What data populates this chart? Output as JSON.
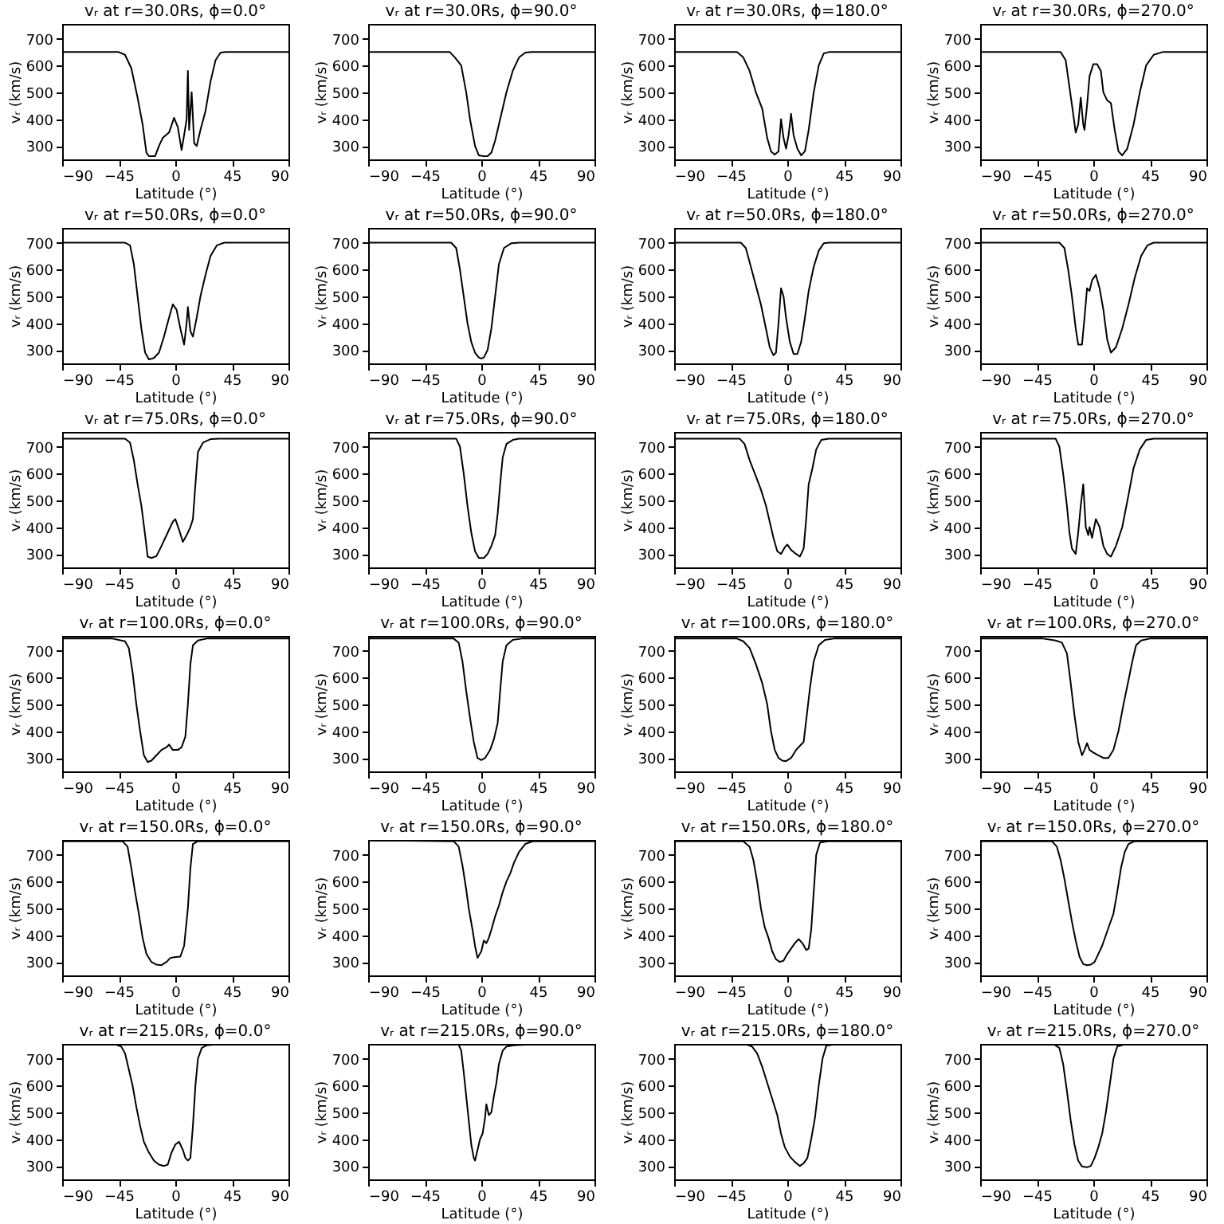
{
  "chart_data": [
    {
      "type": "line",
      "title": "vᵣ at r=30.0Rs, ϕ=0.0°",
      "xlabel": "Latitude (°)",
      "ylabel": "vᵣ (km/s)",
      "xlim": [
        -90,
        90
      ],
      "xticks": [
        -90,
        -45,
        0,
        45,
        90
      ],
      "ylim": [
        250,
        755
      ],
      "yticks": [
        300,
        400,
        500,
        600,
        700
      ],
      "grid": false,
      "series": [
        {
          "color": "#000000",
          "x": [
            -90,
            -45,
            -40,
            -35,
            -30,
            -26,
            -23,
            -21,
            -16,
            -13,
            -10,
            -5,
            -1,
            2,
            5,
            7,
            9,
            10,
            11,
            13,
            15,
            17,
            20,
            24,
            28,
            32,
            36,
            40,
            90
          ],
          "values": [
            650,
            650,
            640,
            590,
            480,
            380,
            275,
            262,
            262,
            300,
            330,
            350,
            405,
            370,
            285,
            340,
            400,
            580,
            360,
            500,
            310,
            300,
            360,
            430,
            540,
            620,
            648,
            650,
            650
          ]
        }
      ]
    },
    {
      "type": "line",
      "title": "vᵣ at r=30.0Rs, ϕ=90.0°",
      "xlabel": "Latitude (°)",
      "ylabel": "vᵣ (km/s)",
      "xlim": [
        -90,
        90
      ],
      "xticks": [
        -90,
        -45,
        0,
        45,
        90
      ],
      "ylim": [
        250,
        755
      ],
      "yticks": [
        300,
        400,
        500,
        600,
        700
      ],
      "grid": false,
      "series": [
        {
          "color": "#000000",
          "x": [
            -90,
            -25,
            -21,
            -16,
            -12,
            -9,
            -5,
            -2,
            2,
            5,
            8,
            11,
            15,
            20,
            25,
            30,
            35,
            40,
            90
          ],
          "values": [
            650,
            650,
            630,
            600,
            500,
            400,
            300,
            265,
            262,
            262,
            275,
            320,
            400,
            500,
            580,
            630,
            648,
            650,
            650
          ]
        }
      ]
    },
    {
      "type": "line",
      "title": "vᵣ at r=30.0Rs, ϕ=180.0°",
      "xlabel": "Latitude (°)",
      "ylabel": "vᵣ (km/s)",
      "xlim": [
        -90,
        90
      ],
      "xticks": [
        -90,
        -45,
        0,
        45,
        90
      ],
      "ylim": [
        250,
        755
      ],
      "yticks": [
        300,
        400,
        500,
        600,
        700
      ],
      "grid": false,
      "series": [
        {
          "color": "#000000",
          "x": [
            -90,
            -40,
            -35,
            -30,
            -25,
            -20,
            -16,
            -13,
            -10,
            -7,
            -5,
            -3,
            -1,
            1,
            3,
            5,
            8,
            11,
            14,
            17,
            21,
            25,
            29,
            33,
            90
          ],
          "values": [
            650,
            650,
            630,
            580,
            500,
            440,
            330,
            280,
            268,
            280,
            400,
            330,
            290,
            340,
            420,
            340,
            290,
            265,
            280,
            360,
            500,
            600,
            645,
            650,
            650
          ]
        }
      ]
    },
    {
      "type": "line",
      "title": "vᵣ at r=30.0Rs, ϕ=270.0°",
      "xlabel": "Latitude (°)",
      "ylabel": "vᵣ (km/s)",
      "xlim": [
        -90,
        90
      ],
      "xticks": [
        -90,
        -45,
        0,
        45,
        90
      ],
      "ylim": [
        250,
        755
      ],
      "yticks": [
        300,
        400,
        500,
        600,
        700
      ],
      "grid": false,
      "series": [
        {
          "color": "#000000",
          "x": [
            -90,
            -26,
            -22,
            -19,
            -16,
            -14,
            -12,
            -10,
            -8,
            -7,
            -5,
            -3,
            0,
            3,
            6,
            8,
            11,
            14,
            17,
            20,
            23,
            27,
            32,
            37,
            42,
            48,
            55,
            90
          ],
          "values": [
            650,
            650,
            620,
            520,
            420,
            350,
            380,
            480,
            380,
            360,
            450,
            560,
            605,
            605,
            580,
            500,
            470,
            460,
            360,
            280,
            265,
            290,
            380,
            500,
            600,
            640,
            650,
            650
          ]
        }
      ]
    },
    {
      "type": "line",
      "title": "vᵣ at r=50.0Rs, ϕ=0.0°",
      "xlabel": "Latitude (°)",
      "ylabel": "vᵣ (km/s)",
      "xlim": [
        -90,
        90
      ],
      "xticks": [
        -90,
        -45,
        0,
        45,
        90
      ],
      "ylim": [
        250,
        755
      ],
      "yticks": [
        300,
        400,
        500,
        600,
        700
      ],
      "grid": false,
      "series": [
        {
          "color": "#000000",
          "x": [
            -90,
            -40,
            -36,
            -33,
            -30,
            -27,
            -24,
            -21,
            -17,
            -13,
            -9,
            -5,
            -2,
            1,
            4,
            7,
            9,
            10,
            12,
            14,
            17,
            20,
            24,
            28,
            33,
            39,
            90
          ],
          "values": [
            700,
            700,
            690,
            620,
            500,
            380,
            290,
            265,
            270,
            290,
            350,
            420,
            470,
            450,
            380,
            320,
            400,
            460,
            370,
            350,
            420,
            500,
            580,
            650,
            690,
            700,
            700
          ]
        }
      ]
    },
    {
      "type": "line",
      "title": "vᵣ at r=50.0Rs, ϕ=90.0°",
      "xlabel": "Latitude (°)",
      "ylabel": "vᵣ (km/s)",
      "xlim": [
        -90,
        90
      ],
      "xticks": [
        -90,
        -45,
        0,
        45,
        90
      ],
      "ylim": [
        250,
        755
      ],
      "yticks": [
        300,
        400,
        500,
        600,
        700
      ],
      "grid": false,
      "series": [
        {
          "color": "#000000",
          "x": [
            -90,
            -24,
            -20,
            -17,
            -14,
            -11,
            -8,
            -5,
            -2,
            0,
            2,
            5,
            8,
            11,
            14,
            18,
            24,
            30,
            90
          ],
          "values": [
            700,
            700,
            680,
            600,
            500,
            400,
            330,
            290,
            272,
            268,
            272,
            300,
            380,
            500,
            620,
            680,
            698,
            700,
            700
          ]
        }
      ]
    },
    {
      "type": "line",
      "title": "vᵣ at r=50.0Rs, ϕ=180.0°",
      "xlabel": "Latitude (°)",
      "ylabel": "vᵣ (km/s)",
      "xlim": [
        -90,
        90
      ],
      "xticks": [
        -90,
        -45,
        0,
        45,
        90
      ],
      "ylim": [
        250,
        755
      ],
      "yticks": [
        300,
        400,
        500,
        600,
        700
      ],
      "grid": false,
      "series": [
        {
          "color": "#000000",
          "x": [
            -90,
            -37,
            -33,
            -29,
            -25,
            -21,
            -17,
            -14,
            -11,
            -9,
            -7,
            -5,
            -3,
            -1,
            2,
            5,
            8,
            11,
            14,
            17,
            21,
            25,
            29,
            33,
            90
          ],
          "values": [
            700,
            700,
            680,
            610,
            540,
            470,
            380,
            310,
            280,
            290,
            400,
            530,
            500,
            420,
            330,
            285,
            285,
            330,
            420,
            520,
            610,
            670,
            698,
            700,
            700
          ]
        }
      ]
    },
    {
      "type": "line",
      "title": "vᵣ at r=50.0Rs, ϕ=270.0°",
      "xlabel": "Latitude (°)",
      "ylabel": "vᵣ (km/s)",
      "xlim": [
        -90,
        90
      ],
      "xticks": [
        -90,
        -45,
        0,
        45,
        90
      ],
      "ylim": [
        250,
        755
      ],
      "yticks": [
        300,
        400,
        500,
        600,
        700
      ],
      "grid": false,
      "series": [
        {
          "color": "#000000",
          "x": [
            -90,
            -27,
            -23,
            -20,
            -17,
            -14,
            -12,
            -9,
            -7,
            -5,
            -3,
            -1,
            2,
            5,
            8,
            11,
            14,
            18,
            23,
            28,
            33,
            38,
            43,
            48,
            90
          ],
          "values": [
            700,
            700,
            680,
            600,
            500,
            380,
            320,
            320,
            420,
            530,
            520,
            560,
            580,
            530,
            450,
            340,
            290,
            310,
            380,
            470,
            570,
            650,
            690,
            700,
            700
          ]
        }
      ]
    },
    {
      "type": "line",
      "title": "vᵣ at r=75.0Rs, ϕ=0.0°",
      "xlabel": "Latitude (°)",
      "ylabel": "vᵣ (km/s)",
      "xlim": [
        -90,
        90
      ],
      "xticks": [
        -90,
        -45,
        0,
        45,
        90
      ],
      "ylim": [
        250,
        755
      ],
      "yticks": [
        300,
        400,
        500,
        600,
        700
      ],
      "grid": false,
      "series": [
        {
          "color": "#000000",
          "x": [
            -90,
            -40,
            -36,
            -33,
            -30,
            -27,
            -24,
            -22,
            -19,
            -15,
            -11,
            -6,
            -2,
            0,
            3,
            6,
            9,
            12,
            14,
            16,
            18,
            22,
            28,
            35,
            90
          ],
          "values": [
            730,
            730,
            715,
            650,
            560,
            480,
            370,
            290,
            285,
            292,
            330,
            380,
            420,
            430,
            390,
            345,
            370,
            400,
            430,
            560,
            680,
            715,
            728,
            730,
            730
          ]
        }
      ]
    },
    {
      "type": "line",
      "title": "vᵣ at r=75.0Rs, ϕ=90.0°",
      "xlabel": "Latitude (°)",
      "ylabel": "vᵣ (km/s)",
      "xlim": [
        -90,
        90
      ],
      "xticks": [
        -90,
        -45,
        0,
        45,
        90
      ],
      "ylim": [
        250,
        755
      ],
      "yticks": [
        300,
        400,
        500,
        600,
        700
      ],
      "grid": false,
      "series": [
        {
          "color": "#000000",
          "x": [
            -90,
            -20,
            -17,
            -14,
            -11,
            -8,
            -5,
            -2,
            2,
            5,
            8,
            11,
            13,
            15,
            17,
            20,
            25,
            30,
            90
          ],
          "values": [
            730,
            730,
            700,
            600,
            480,
            380,
            310,
            285,
            285,
            300,
            330,
            370,
            450,
            560,
            660,
            710,
            725,
            730,
            730
          ]
        }
      ]
    },
    {
      "type": "line",
      "title": "vᵣ at r=75.0Rs, ϕ=180.0°",
      "xlabel": "Latitude (°)",
      "ylabel": "vᵣ (km/s)",
      "xlim": [
        -90,
        90
      ],
      "xticks": [
        -90,
        -45,
        0,
        45,
        90
      ],
      "ylim": [
        250,
        755
      ],
      "yticks": [
        300,
        400,
        500,
        600,
        700
      ],
      "grid": false,
      "series": [
        {
          "color": "#000000",
          "x": [
            -90,
            -38,
            -34,
            -30,
            -25,
            -21,
            -17,
            -14,
            -11,
            -8,
            -5,
            -2,
            0,
            3,
            7,
            10,
            13,
            15,
            17,
            20,
            23,
            27,
            33,
            90
          ],
          "values": [
            730,
            730,
            710,
            650,
            590,
            540,
            480,
            420,
            360,
            310,
            300,
            325,
            335,
            315,
            300,
            290,
            320,
            430,
            560,
            620,
            690,
            725,
            730,
            730
          ]
        }
      ]
    },
    {
      "type": "line",
      "title": "vᵣ at r=75.0Rs, ϕ=270.0°",
      "xlabel": "Latitude (°)",
      "ylabel": "vᵣ (km/s)",
      "xlim": [
        -90,
        90
      ],
      "xticks": [
        -90,
        -45,
        0,
        45,
        90
      ],
      "ylim": [
        250,
        755
      ],
      "yticks": [
        300,
        400,
        500,
        600,
        700
      ],
      "grid": false,
      "series": [
        {
          "color": "#000000",
          "x": [
            -90,
            -30,
            -27,
            -24,
            -21,
            -19,
            -17,
            -14,
            -12,
            -10,
            -8,
            -6,
            -4,
            -3,
            -1,
            2,
            5,
            8,
            11,
            14,
            18,
            23,
            28,
            32,
            37,
            42,
            48,
            90
          ],
          "values": [
            730,
            730,
            700,
            600,
            480,
            380,
            320,
            300,
            380,
            480,
            560,
            400,
            370,
            400,
            360,
            430,
            400,
            330,
            300,
            290,
            330,
            400,
            520,
            620,
            690,
            725,
            730,
            730
          ]
        }
      ]
    },
    {
      "type": "line",
      "title": "vᵣ at r=100.0Rs, ϕ=0.0°",
      "xlabel": "Latitude (°)",
      "ylabel": "vᵣ (km/s)",
      "xlim": [
        -90,
        90
      ],
      "xticks": [
        -90,
        -45,
        0,
        45,
        90
      ],
      "ylim": [
        250,
        755
      ],
      "yticks": [
        300,
        400,
        500,
        600,
        700
      ],
      "grid": false,
      "series": [
        {
          "color": "#000000",
          "x": [
            -90,
            -50,
            -40,
            -37,
            -34,
            -31,
            -28,
            -25,
            -22,
            -19,
            -15,
            -11,
            -7,
            -5,
            -2,
            2,
            5,
            8,
            10,
            12,
            14,
            18,
            25,
            90
          ],
          "values": [
            745,
            745,
            735,
            710,
            620,
            500,
            400,
            310,
            285,
            290,
            310,
            330,
            340,
            350,
            330,
            330,
            340,
            380,
            500,
            650,
            720,
            738,
            745,
            745
          ]
        }
      ]
    },
    {
      "type": "line",
      "title": "vᵣ at r=100.0Rs, ϕ=90.0°",
      "xlabel": "Latitude (°)",
      "ylabel": "vᵣ (km/s)",
      "xlim": [
        -90,
        90
      ],
      "xticks": [
        -90,
        -45,
        0,
        45,
        90
      ],
      "ylim": [
        250,
        755
      ],
      "yticks": [
        300,
        400,
        500,
        600,
        700
      ],
      "grid": false,
      "series": [
        {
          "color": "#000000",
          "x": [
            -90,
            -22,
            -18,
            -15,
            -12,
            -9,
            -6,
            -3,
            0,
            3,
            7,
            10,
            13,
            15,
            17,
            20,
            25,
            32,
            90
          ],
          "values": [
            745,
            745,
            730,
            660,
            550,
            450,
            360,
            300,
            292,
            300,
            330,
            370,
            430,
            550,
            660,
            720,
            740,
            745,
            745
          ]
        }
      ]
    },
    {
      "type": "line",
      "title": "vᵣ at r=100.0Rs, ϕ=180.0°",
      "xlabel": "Latitude (°)",
      "ylabel": "vᵣ (km/s)",
      "xlim": [
        -90,
        90
      ],
      "xticks": [
        -90,
        -45,
        0,
        45,
        90
      ],
      "ylim": [
        250,
        755
      ],
      "yticks": [
        300,
        400,
        500,
        600,
        700
      ],
      "grid": false,
      "series": [
        {
          "color": "#000000",
          "x": [
            -90,
            -40,
            -35,
            -30,
            -25,
            -20,
            -16,
            -13,
            -10,
            -7,
            -4,
            -1,
            3,
            7,
            10,
            13,
            15,
            18,
            21,
            25,
            30,
            37,
            90
          ],
          "values": [
            745,
            745,
            735,
            710,
            650,
            580,
            500,
            400,
            330,
            300,
            290,
            288,
            300,
            330,
            345,
            360,
            440,
            560,
            660,
            720,
            740,
            745,
            745
          ]
        }
      ]
    },
    {
      "type": "line",
      "title": "vᵣ at r=100.0Rs, ϕ=270.0°",
      "xlabel": "Latitude (°)",
      "ylabel": "vᵣ (km/s)",
      "xlim": [
        -90,
        90
      ],
      "xticks": [
        -90,
        -45,
        0,
        45,
        90
      ],
      "ylim": [
        250,
        755
      ],
      "yticks": [
        300,
        400,
        500,
        600,
        700
      ],
      "grid": false,
      "series": [
        {
          "color": "#000000",
          "x": [
            -90,
            -40,
            -30,
            -25,
            -21,
            -18,
            -15,
            -12,
            -9,
            -7,
            -5,
            -3,
            0,
            4,
            8,
            12,
            16,
            20,
            24,
            28,
            31,
            34,
            38,
            45,
            90
          ],
          "values": [
            745,
            745,
            738,
            730,
            690,
            580,
            460,
            360,
            310,
            330,
            355,
            330,
            320,
            310,
            300,
            300,
            330,
            400,
            500,
            590,
            660,
            720,
            738,
            745,
            745
          ]
        }
      ]
    },
    {
      "type": "line",
      "title": "vᵣ at r=150.0Rs, ϕ=0.0°",
      "xlabel": "Latitude (°)",
      "ylabel": "vᵣ (km/s)",
      "xlim": [
        -90,
        90
      ],
      "xticks": [
        -90,
        -45,
        0,
        45,
        90
      ],
      "ylim": [
        250,
        755
      ],
      "yticks": [
        300,
        400,
        500,
        600,
        700
      ],
      "grid": false,
      "series": [
        {
          "color": "#000000",
          "x": [
            -90,
            -42,
            -38,
            -35,
            -32,
            -29,
            -26,
            -23,
            -19,
            -15,
            -11,
            -7,
            -4,
            0,
            4,
            7,
            10,
            12,
            14,
            18,
            90
          ],
          "values": [
            750,
            750,
            730,
            650,
            560,
            480,
            390,
            330,
            300,
            290,
            288,
            300,
            315,
            318,
            320,
            360,
            500,
            650,
            740,
            750,
            750
          ]
        }
      ]
    },
    {
      "type": "line",
      "title": "vᵣ at r=150.0Rs, ϕ=90.0°",
      "xlabel": "Latitude (°)",
      "ylabel": "vᵣ (km/s)",
      "xlim": [
        -90,
        90
      ],
      "xticks": [
        -90,
        -45,
        0,
        45,
        90
      ],
      "ylim": [
        250,
        755
      ],
      "yticks": [
        300,
        400,
        500,
        600,
        700
      ],
      "grid": false,
      "series": [
        {
          "color": "#000000",
          "x": [
            -90,
            -60,
            -22,
            -18,
            -15,
            -12,
            -10,
            -7,
            -5,
            -3,
            0,
            2,
            4,
            6,
            8,
            11,
            14,
            17,
            20,
            23,
            26,
            30,
            35,
            41,
            90
          ],
          "values": [
            755,
            752,
            750,
            730,
            660,
            570,
            500,
            420,
            360,
            315,
            340,
            380,
            370,
            390,
            420,
            470,
            510,
            560,
            600,
            630,
            670,
            710,
            740,
            750,
            750
          ]
        }
      ]
    },
    {
      "type": "line",
      "title": "vᵣ at r=150.0Rs, ϕ=180.0°",
      "xlabel": "Latitude (°)",
      "ylabel": "vᵣ (km/s)",
      "xlim": [
        -90,
        90
      ],
      "xticks": [
        -90,
        -45,
        0,
        45,
        90
      ],
      "ylim": [
        250,
        755
      ],
      "yticks": [
        300,
        400,
        500,
        600,
        700
      ],
      "grid": false,
      "series": [
        {
          "color": "#000000",
          "x": [
            -90,
            -35,
            -30,
            -27,
            -24,
            -21,
            -18,
            -15,
            -12,
            -9,
            -6,
            -3,
            0,
            3,
            6,
            9,
            12,
            15,
            17,
            19,
            21,
            23,
            26,
            32,
            90
          ],
          "values": [
            750,
            750,
            730,
            680,
            600,
            500,
            430,
            390,
            340,
            310,
            300,
            305,
            330,
            350,
            370,
            385,
            370,
            345,
            350,
            420,
            560,
            700,
            745,
            750,
            750
          ]
        }
      ]
    },
    {
      "type": "line",
      "title": "vᵣ at r=150.0Rs, ϕ=270.0°",
      "xlabel": "Latitude (°)",
      "ylabel": "vᵣ (km/s)",
      "xlim": [
        -90,
        90
      ],
      "xticks": [
        -90,
        -45,
        0,
        45,
        90
      ],
      "ylim": [
        250,
        755
      ],
      "yticks": [
        300,
        400,
        500,
        600,
        700
      ],
      "grid": false,
      "series": [
        {
          "color": "#000000",
          "x": [
            -90,
            -33,
            -29,
            -26,
            -23,
            -20,
            -17,
            -14,
            -11,
            -8,
            -5,
            -2,
            1,
            4,
            7,
            10,
            13,
            16,
            19,
            22,
            25,
            28,
            33,
            90
          ],
          "values": [
            750,
            750,
            730,
            680,
            610,
            530,
            450,
            380,
            320,
            292,
            288,
            290,
            300,
            330,
            360,
            400,
            440,
            480,
            560,
            650,
            710,
            740,
            750,
            750
          ]
        }
      ]
    },
    {
      "type": "line",
      "title": "vᵣ at r=215.0Rs, ϕ=0.0°",
      "xlabel": "Latitude (°)",
      "ylabel": "vᵣ (km/s)",
      "xlim": [
        -90,
        90
      ],
      "xticks": [
        -90,
        -45,
        0,
        45,
        90
      ],
      "ylim": [
        250,
        755
      ],
      "yticks": [
        300,
        400,
        500,
        600,
        700
      ],
      "grid": false,
      "series": [
        {
          "color": "#000000",
          "x": [
            -90,
            -47,
            -43,
            -40,
            -37,
            -34,
            -31,
            -28,
            -25,
            -21,
            -17,
            -13,
            -9,
            -6,
            -3,
            0,
            3,
            6,
            8,
            10,
            12,
            14,
            16,
            18,
            21,
            25,
            30,
            90
          ],
          "values": [
            752,
            752,
            745,
            720,
            660,
            600,
            520,
            450,
            390,
            350,
            320,
            305,
            300,
            305,
            350,
            380,
            390,
            360,
            330,
            320,
            330,
            450,
            600,
            700,
            740,
            750,
            752,
            752
          ]
        }
      ]
    },
    {
      "type": "line",
      "title": "vᵣ at r=215.0Rs, ϕ=90.0°",
      "xlabel": "Latitude (°)",
      "ylabel": "vᵣ (km/s)",
      "xlim": [
        -90,
        90
      ],
      "xticks": [
        -90,
        -45,
        0,
        45,
        90
      ],
      "ylim": [
        250,
        755
      ],
      "yticks": [
        300,
        400,
        500,
        600,
        700
      ],
      "grid": false,
      "series": [
        {
          "color": "#000000",
          "x": [
            -90,
            -18,
            -16,
            -14,
            -12,
            -10,
            -8,
            -6,
            -5,
            -3,
            -1,
            1,
            3,
            4,
            6,
            8,
            10,
            12,
            14,
            17,
            20,
            26,
            35,
            90
          ],
          "values": [
            752,
            752,
            730,
            650,
            560,
            470,
            380,
            330,
            320,
            360,
            400,
            420,
            480,
            530,
            490,
            500,
            560,
            610,
            680,
            730,
            745,
            750,
            752,
            752
          ]
        }
      ]
    },
    {
      "type": "line",
      "title": "vᵣ at r=215.0Rs, ϕ=180.0°",
      "xlabel": "Latitude (°)",
      "ylabel": "vᵣ (km/s)",
      "xlim": [
        -90,
        90
      ],
      "xticks": [
        -90,
        -45,
        0,
        45,
        90
      ],
      "ylim": [
        250,
        755
      ],
      "yticks": [
        300,
        400,
        500,
        600,
        700
      ],
      "grid": false,
      "series": [
        {
          "color": "#000000",
          "x": [
            -90,
            -32,
            -28,
            -24,
            -20,
            -16,
            -12,
            -8,
            -5,
            -2,
            2,
            6,
            10,
            13,
            16,
            19,
            22,
            25,
            28,
            31,
            36,
            90
          ],
          "values": [
            752,
            752,
            745,
            720,
            670,
            610,
            550,
            490,
            420,
            370,
            335,
            315,
            300,
            310,
            330,
            400,
            480,
            600,
            700,
            748,
            752,
            752
          ]
        }
      ]
    },
    {
      "type": "line",
      "title": "vᵣ at r=215.0Rs, ϕ=270.0°",
      "xlabel": "Latitude (°)",
      "ylabel": "vᵣ (km/s)",
      "xlim": [
        -90,
        90
      ],
      "xticks": [
        -90,
        -45,
        0,
        45,
        90
      ],
      "ylim": [
        250,
        755
      ],
      "yticks": [
        300,
        400,
        500,
        600,
        700
      ],
      "grid": false,
      "series": [
        {
          "color": "#000000",
          "x": [
            -90,
            -31,
            -27,
            -24,
            -21,
            -18,
            -15,
            -12,
            -9,
            -5,
            -2,
            1,
            4,
            7,
            10,
            13,
            16,
            19,
            24,
            90
          ],
          "values": [
            752,
            752,
            740,
            680,
            580,
            470,
            380,
            320,
            298,
            295,
            300,
            330,
            370,
            420,
            500,
            600,
            700,
            745,
            752,
            752
          ]
        }
      ]
    }
  ]
}
